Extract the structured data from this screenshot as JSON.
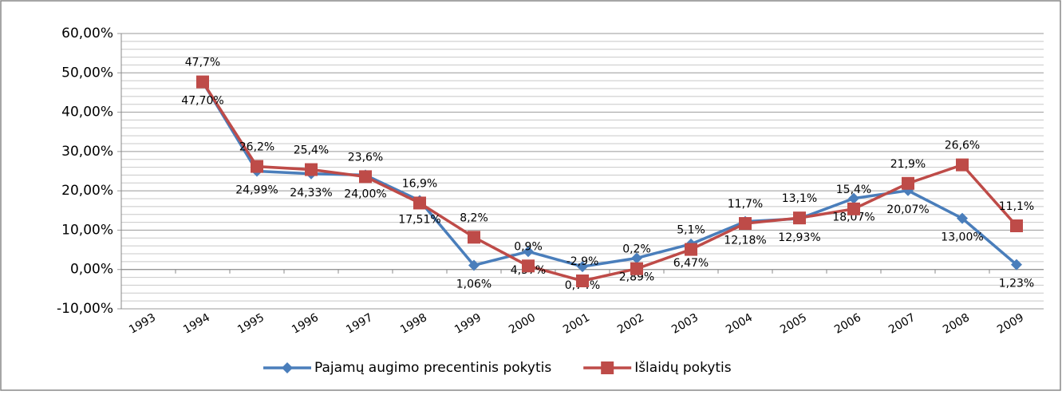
{
  "chart_data": {
    "type": "line",
    "categories": [
      "1993",
      "1994",
      "1995",
      "1996",
      "1997",
      "1998",
      "1999",
      "2000",
      "2001",
      "2002",
      "2003",
      "2004",
      "2005",
      "2006",
      "2007",
      "2008",
      "2009"
    ],
    "series": [
      {
        "name": "Pajamų augimo precentinis pokytis",
        "color": "#4a7ebb",
        "marker": "diamond",
        "values": [
          null,
          47.7,
          24.99,
          24.33,
          24.0,
          17.51,
          1.06,
          4.57,
          0.74,
          2.89,
          6.47,
          12.18,
          12.93,
          18.07,
          20.07,
          13.0,
          1.23
        ],
        "value_labels": [
          null,
          "47,70%",
          "24,99%",
          "24,33%",
          "24,00%",
          "17,51%",
          "1,06%",
          "4,57%",
          "0,74%",
          "2,89%",
          "6,47%",
          "12,18%",
          "12,93%",
          "18,07%",
          "20,07%",
          "13,00%",
          "1,23%"
        ]
      },
      {
        "name": "Išlaidų pokytis",
        "color": "#be4b48",
        "marker": "square",
        "values": [
          null,
          47.7,
          26.2,
          25.4,
          23.6,
          16.9,
          8.2,
          0.9,
          -2.9,
          0.2,
          5.1,
          11.7,
          13.1,
          15.4,
          21.9,
          26.6,
          11.1
        ],
        "value_labels": [
          null,
          "47,7%",
          "26,2%",
          "25,4%",
          "23,6%",
          "16,9%",
          "8,2%",
          "0,9%",
          "-2,9%",
          "0,2%",
          "5,1%",
          "11,7%",
          "13,1%",
          "15,4%",
          "21,9%",
          "26,6%",
          "11,1%"
        ]
      }
    ],
    "ylim": [
      -10,
      60
    ],
    "yticks": [
      {
        "value": -10,
        "label": "-10,00%"
      },
      {
        "value": 0,
        "label": "0,00%"
      },
      {
        "value": 10,
        "label": "10,00%"
      },
      {
        "value": 20,
        "label": "20,00%"
      },
      {
        "value": 30,
        "label": "30,00%"
      },
      {
        "value": 40,
        "label": "40,00%"
      },
      {
        "value": 50,
        "label": "50,00%"
      },
      {
        "value": 60,
        "label": "60,00%"
      }
    ],
    "grid": true,
    "legend": "bottom"
  }
}
